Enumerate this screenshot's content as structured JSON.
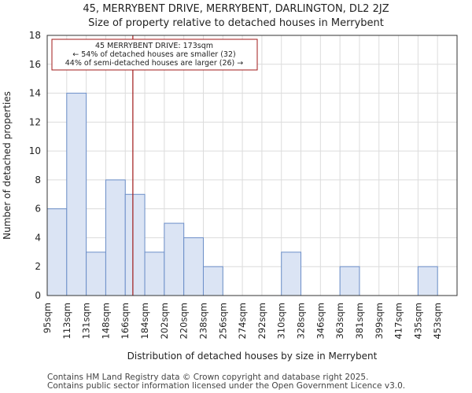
{
  "title_line1": "45, MERRYBENT DRIVE, MERRYBENT, DARLINGTON, DL2 2JZ",
  "title_line2": "Size of property relative to detached houses in Merrybent",
  "footer_line1": "Contains HM Land Registry data © Crown copyright and database right 2025.",
  "footer_line2": "Contains public sector information licensed under the Open Government Licence v3.0.",
  "colors": {
    "bar_fill": "#dbe4f4",
    "bar_stroke": "#6b8ec8",
    "marker": "#a01818",
    "grid": "#dcdcdc"
  },
  "chart_data": {
    "type": "bar",
    "title": "Size of property relative to detached houses in Merrybent",
    "xlabel": "Distribution of detached houses by size in Merrybent",
    "ylabel": "Number of detached properties",
    "ylim": [
      0,
      18
    ],
    "yticks": [
      0,
      2,
      4,
      6,
      8,
      10,
      12,
      14,
      16,
      18
    ],
    "grid": true,
    "categories": [
      "95sqm",
      "113sqm",
      "131sqm",
      "148sqm",
      "166sqm",
      "184sqm",
      "202sqm",
      "220sqm",
      "238sqm",
      "256sqm",
      "274sqm",
      "292sqm",
      "310sqm",
      "328sqm",
      "346sqm",
      "363sqm",
      "381sqm",
      "399sqm",
      "417sqm",
      "435sqm",
      "453sqm"
    ],
    "values": [
      6,
      14,
      3,
      8,
      7,
      3,
      5,
      4,
      2,
      0,
      0,
      0,
      3,
      0,
      0,
      2,
      0,
      0,
      0,
      2,
      0
    ],
    "marker": {
      "value": 173,
      "unit": "sqm"
    },
    "annotation": {
      "line1": "45 MERRYBENT DRIVE: 173sqm",
      "line2": "← 54% of detached houses are smaller (32)",
      "line3": "44% of semi-detached houses are larger (26) →"
    }
  }
}
